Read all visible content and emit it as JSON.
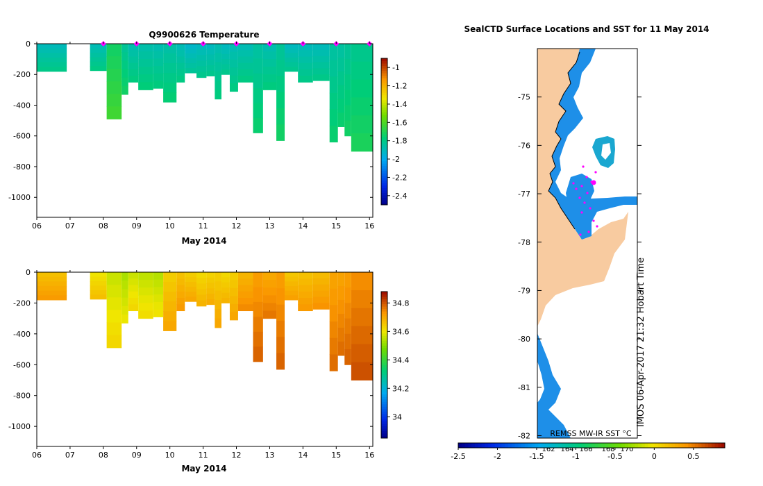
{
  "chart_data": [
    {
      "id": "temperature",
      "type": "heatmap",
      "title": "Q9900626  Temperature",
      "xlabel": "May 2014",
      "ylabel": "",
      "x_ticks": [
        "06",
        "07",
        "08",
        "09",
        "10",
        "11",
        "12",
        "13",
        "14",
        "15",
        "16"
      ],
      "xlim": [
        6,
        16.1
      ],
      "y_ticks": [
        "0",
        "-200",
        "-400",
        "-600",
        "-800",
        "-1000"
      ],
      "y_tick_values": [
        0,
        -200,
        -400,
        -600,
        -800,
        -1000
      ],
      "ylim": [
        -1130,
        0
      ],
      "colorbar_ticks": [
        "-1",
        "-1.2",
        "-1.4",
        "-1.6",
        "-1.8",
        "-2",
        "-2.2",
        "-2.4"
      ],
      "colorbar_tick_values": [
        -1,
        -1.2,
        -1.4,
        -1.6,
        -1.8,
        -2,
        -2.2,
        -2.4
      ],
      "colorbar_range": [
        -2.5,
        -0.9
      ],
      "profile_markers_x": [
        8,
        9,
        10,
        11,
        12,
        13,
        14,
        15,
        16
      ],
      "profiles": [
        {
          "x0": 6.0,
          "x1": 6.9,
          "depth": 180,
          "value": -1.87
        },
        {
          "x0": 7.6,
          "x1": 8.1,
          "depth": 175,
          "value": -1.86
        },
        {
          "x0": 8.1,
          "x1": 8.55,
          "depth": 490,
          "value": -1.7
        },
        {
          "x0": 8.55,
          "x1": 8.75,
          "depth": 330,
          "value": -1.8
        },
        {
          "x0": 8.75,
          "x1": 9.05,
          "depth": 250,
          "value": -1.85
        },
        {
          "x0": 9.05,
          "x1": 9.5,
          "depth": 300,
          "value": -1.84
        },
        {
          "x0": 9.5,
          "x1": 9.8,
          "depth": 290,
          "value": -1.85
        },
        {
          "x0": 9.8,
          "x1": 10.2,
          "depth": 380,
          "value": -1.83
        },
        {
          "x0": 10.2,
          "x1": 10.45,
          "depth": 250,
          "value": -1.86
        },
        {
          "x0": 10.45,
          "x1": 10.8,
          "depth": 190,
          "value": -1.9
        },
        {
          "x0": 10.8,
          "x1": 11.1,
          "depth": 220,
          "value": -1.88
        },
        {
          "x0": 11.1,
          "x1": 11.35,
          "depth": 210,
          "value": -1.88
        },
        {
          "x0": 11.35,
          "x1": 11.55,
          "depth": 360,
          "value": -1.85
        },
        {
          "x0": 11.55,
          "x1": 11.8,
          "depth": 200,
          "value": -1.88
        },
        {
          "x0": 11.8,
          "x1": 12.05,
          "depth": 310,
          "value": -1.86
        },
        {
          "x0": 12.05,
          "x1": 12.5,
          "depth": 250,
          "value": -1.86
        },
        {
          "x0": 12.5,
          "x1": 12.8,
          "depth": 580,
          "value": -1.82
        },
        {
          "x0": 12.8,
          "x1": 13.2,
          "depth": 300,
          "value": -1.85
        },
        {
          "x0": 13.2,
          "x1": 13.45,
          "depth": 630,
          "value": -1.8
        },
        {
          "x0": 13.45,
          "x1": 13.85,
          "depth": 180,
          "value": -1.88
        },
        {
          "x0": 13.85,
          "x1": 14.3,
          "depth": 250,
          "value": -1.87
        },
        {
          "x0": 14.3,
          "x1": 14.8,
          "depth": 240,
          "value": -1.87
        },
        {
          "x0": 14.8,
          "x1": 15.05,
          "depth": 640,
          "value": -1.82
        },
        {
          "x0": 15.05,
          "x1": 15.25,
          "depth": 540,
          "value": -1.82
        },
        {
          "x0": 15.25,
          "x1": 15.45,
          "depth": 600,
          "value": -1.8
        },
        {
          "x0": 15.45,
          "x1": 16.1,
          "depth": 700,
          "value": -1.78
        }
      ]
    },
    {
      "id": "salinity",
      "type": "heatmap",
      "title": "",
      "xlabel": "May 2014",
      "ylabel": "",
      "x_ticks": [
        "06",
        "07",
        "08",
        "09",
        "10",
        "11",
        "12",
        "13",
        "14",
        "15",
        "16"
      ],
      "xlim": [
        6,
        16.1
      ],
      "y_ticks": [
        "0",
        "-200",
        "-400",
        "-600",
        "-800",
        "-1000"
      ],
      "y_tick_values": [
        0,
        -200,
        -400,
        -600,
        -800,
        -1000
      ],
      "ylim": [
        -1130,
        0
      ],
      "colorbar_ticks": [
        "34.8",
        "34.6",
        "34.4",
        "34.2",
        "34"
      ],
      "colorbar_tick_values": [
        34.8,
        34.6,
        34.4,
        34.2,
        34.0
      ],
      "colorbar_range": [
        33.85,
        34.88
      ],
      "profiles": [
        {
          "x0": 6.0,
          "x1": 6.9,
          "depth": 180,
          "value": 34.68
        },
        {
          "x0": 7.6,
          "x1": 8.1,
          "depth": 175,
          "value": 34.62
        },
        {
          "x0": 8.1,
          "x1": 8.55,
          "depth": 490,
          "value": 34.58
        },
        {
          "x0": 8.55,
          "x1": 8.75,
          "depth": 330,
          "value": 34.55
        },
        {
          "x0": 8.75,
          "x1": 9.05,
          "depth": 250,
          "value": 34.58
        },
        {
          "x0": 9.05,
          "x1": 9.5,
          "depth": 300,
          "value": 34.57
        },
        {
          "x0": 9.5,
          "x1": 9.8,
          "depth": 290,
          "value": 34.56
        },
        {
          "x0": 9.8,
          "x1": 10.2,
          "depth": 380,
          "value": 34.66
        },
        {
          "x0": 10.2,
          "x1": 10.45,
          "depth": 250,
          "value": 34.68
        },
        {
          "x0": 10.45,
          "x1": 10.8,
          "depth": 190,
          "value": 34.66
        },
        {
          "x0": 10.8,
          "x1": 11.1,
          "depth": 220,
          "value": 34.64
        },
        {
          "x0": 11.1,
          "x1": 11.35,
          "depth": 210,
          "value": 34.65
        },
        {
          "x0": 11.35,
          "x1": 11.55,
          "depth": 360,
          "value": 34.66
        },
        {
          "x0": 11.55,
          "x1": 11.8,
          "depth": 200,
          "value": 34.64
        },
        {
          "x0": 11.8,
          "x1": 12.05,
          "depth": 310,
          "value": 34.66
        },
        {
          "x0": 12.05,
          "x1": 12.5,
          "depth": 250,
          "value": 34.7
        },
        {
          "x0": 12.5,
          "x1": 12.8,
          "depth": 580,
          "value": 34.74
        },
        {
          "x0": 12.8,
          "x1": 13.2,
          "depth": 300,
          "value": 34.72
        },
        {
          "x0": 13.2,
          "x1": 13.45,
          "depth": 630,
          "value": 34.74
        },
        {
          "x0": 13.45,
          "x1": 13.85,
          "depth": 180,
          "value": 34.67
        },
        {
          "x0": 13.85,
          "x1": 14.3,
          "depth": 250,
          "value": 34.68
        },
        {
          "x0": 14.3,
          "x1": 14.8,
          "depth": 240,
          "value": 34.69
        },
        {
          "x0": 14.8,
          "x1": 15.05,
          "depth": 640,
          "value": 34.73
        },
        {
          "x0": 15.05,
          "x1": 15.25,
          "depth": 540,
          "value": 34.73
        },
        {
          "x0": 15.25,
          "x1": 15.45,
          "depth": 600,
          "value": 34.74
        },
        {
          "x0": 15.45,
          "x1": 16.1,
          "depth": 700,
          "value": 34.76
        }
      ]
    },
    {
      "id": "sst-map",
      "type": "heatmap",
      "title": "SealCTD Surface Locations and SST for 11 May 2014",
      "y_ticks": [
        "-75",
        "-76",
        "-77",
        "-78",
        "-79",
        "-80",
        "-81",
        "-82"
      ],
      "y_tick_values": [
        -75,
        -76,
        -77,
        -78,
        -79,
        -80,
        -81,
        -82
      ],
      "ylim": [
        -82.05,
        -74.0
      ],
      "x_ticks": [
        "162",
        "164",
        "166",
        "168",
        "170"
      ],
      "inset_label": "REMSS MW-IR SST °C",
      "colorbar_ticks": [
        "-2.5",
        "-2",
        "-1.5",
        "-1",
        "-0.5",
        "0",
        "0.5"
      ],
      "colorbar_tick_values": [
        -2.5,
        -2,
        -1.5,
        -1,
        -0.5,
        0,
        0.5
      ],
      "colorbar_range": [
        -2.5,
        0.9
      ],
      "credit": "IMOS 06-Apr-2017 21:32 Hobart Time"
    }
  ],
  "colors": {
    "land": "#f8cba0",
    "ice_water": "#1e8fe8",
    "warm_patch": "#1aa7d0",
    "float_marker": "#ff00ff"
  }
}
